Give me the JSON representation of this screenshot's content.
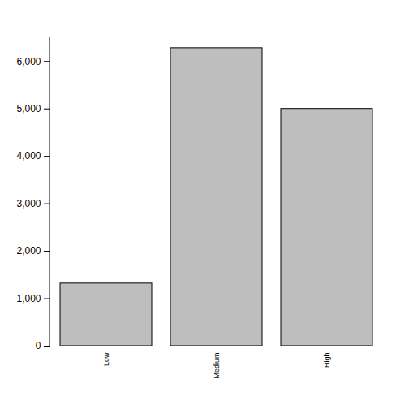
{
  "chart_data": {
    "type": "bar",
    "categories": [
      "Low",
      "Medium",
      "High"
    ],
    "values": [
      1320,
      6280,
      5000
    ],
    "color": "#bebebe",
    "ylim": [
      0,
      6500
    ],
    "yticks": [
      0,
      1000,
      2000,
      3000,
      4000,
      5000,
      6000
    ],
    "grid": false
  }
}
